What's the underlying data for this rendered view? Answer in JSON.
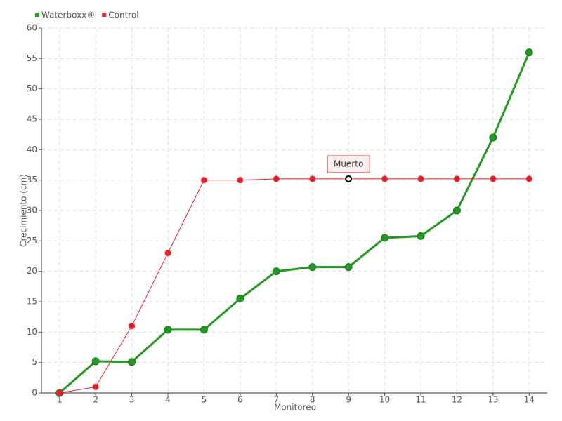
{
  "chart_data": {
    "type": "line",
    "x_label": "Monitoreo",
    "y_label": "Crecimiento (cm)",
    "categories": [
      "1",
      "2",
      "3",
      "4",
      "5",
      "6",
      "7",
      "8",
      "9",
      "10",
      "11",
      "12",
      "13",
      "14"
    ],
    "series": [
      {
        "name": "Waterboxx®",
        "color": "#229922",
        "values": [
          0,
          5.2,
          5.1,
          10.4,
          10.4,
          15.5,
          20,
          20.7,
          20.7,
          25.5,
          25.8,
          30,
          42,
          56
        ]
      },
      {
        "name": "Control",
        "color": "#e8202a",
        "values": [
          0,
          1,
          11,
          23,
          35,
          35,
          35.2,
          35.2,
          35.2,
          35.2,
          35.2,
          35.2,
          35.2,
          35.2
        ]
      }
    ],
    "annotation": {
      "text": "Muerto",
      "x": "9"
    },
    "ylim": [
      0,
      60
    ],
    "yticks": [
      0,
      5,
      10,
      15,
      20,
      25,
      30,
      35,
      40,
      45,
      50,
      55,
      60
    ],
    "grid": true,
    "legend": "top-left"
  }
}
